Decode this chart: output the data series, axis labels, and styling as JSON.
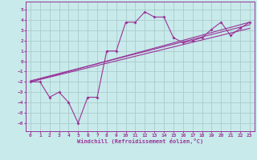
{
  "bg_color": "#c8eaea",
  "grid_color": "#aacccc",
  "line_color": "#993399",
  "marker_color": "#993399",
  "xlabel": "Windchill (Refroidissement éolien,°C)",
  "xlim": [
    -0.5,
    23.5
  ],
  "ylim": [
    -6.8,
    5.8
  ],
  "xticks": [
    0,
    1,
    2,
    3,
    4,
    5,
    6,
    7,
    8,
    9,
    10,
    11,
    12,
    13,
    14,
    15,
    16,
    17,
    18,
    19,
    20,
    21,
    22,
    23
  ],
  "yticks": [
    -6,
    -5,
    -4,
    -3,
    -2,
    -1,
    0,
    1,
    2,
    3,
    4,
    5
  ],
  "scatter_x": [
    0,
    1,
    2,
    3,
    4,
    5,
    6,
    7,
    8,
    9,
    10,
    11,
    12,
    13,
    14,
    15,
    16,
    17,
    18,
    19,
    20,
    21,
    22,
    23
  ],
  "scatter_y": [
    -2,
    -2,
    -3.5,
    -3,
    -4,
    -6,
    -3.5,
    -3.5,
    1,
    1,
    3.8,
    3.8,
    4.8,
    4.3,
    4.3,
    2.3,
    1.8,
    2,
    2.3,
    3.1,
    3.8,
    2.5,
    3.2,
    3.8
  ],
  "line1_x": [
    0,
    23
  ],
  "line1_y": [
    -2.0,
    3.8
  ],
  "line2_x": [
    0,
    23
  ],
  "line2_y": [
    -2.0,
    3.2
  ],
  "line3_x": [
    0,
    23
  ],
  "line3_y": [
    -1.9,
    3.55
  ]
}
